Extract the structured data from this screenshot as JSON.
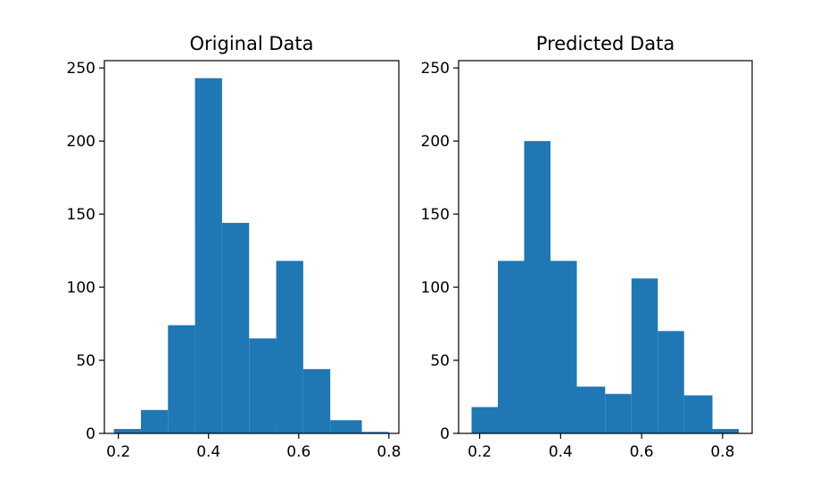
{
  "chart_data": [
    {
      "type": "bar",
      "title": "Original Data",
      "xlabel": "",
      "ylabel": "",
      "xlim": [
        0.169,
        0.822
      ],
      "ylim": [
        0,
        255
      ],
      "xticks": [
        0.2,
        0.4,
        0.6,
        0.8
      ],
      "xtick_labels": [
        "0.2",
        "0.4",
        "0.6",
        "0.8"
      ],
      "yticks": [
        0,
        50,
        100,
        150,
        200,
        250
      ],
      "ytick_labels": [
        "0",
        "50",
        "100",
        "150",
        "200",
        "250"
      ],
      "bin_edges": [
        0.19,
        0.25,
        0.31,
        0.37,
        0.43,
        0.49,
        0.55,
        0.61,
        0.67,
        0.74,
        0.8
      ],
      "values": [
        3,
        16,
        74,
        243,
        144,
        65,
        118,
        44,
        9,
        1
      ],
      "color": "#1f77b4",
      "grid": false
    },
    {
      "type": "bar",
      "title": "Predicted Data",
      "xlabel": "",
      "ylabel": "",
      "xlim": [
        0.148,
        0.873
      ],
      "ylim": [
        0,
        255
      ],
      "xticks": [
        0.2,
        0.4,
        0.6,
        0.8
      ],
      "xtick_labels": [
        "0.2",
        "0.4",
        "0.6",
        "0.8"
      ],
      "yticks": [
        0,
        50,
        100,
        150,
        200,
        250
      ],
      "ytick_labels": [
        "0",
        "50",
        "100",
        "150",
        "200",
        "250"
      ],
      "bin_edges": [
        0.18,
        0.245,
        0.31,
        0.375,
        0.44,
        0.51,
        0.575,
        0.64,
        0.705,
        0.775,
        0.84
      ],
      "values": [
        18,
        118,
        200,
        118,
        32,
        27,
        106,
        70,
        26,
        3
      ],
      "color": "#1f77b4",
      "grid": false
    }
  ]
}
